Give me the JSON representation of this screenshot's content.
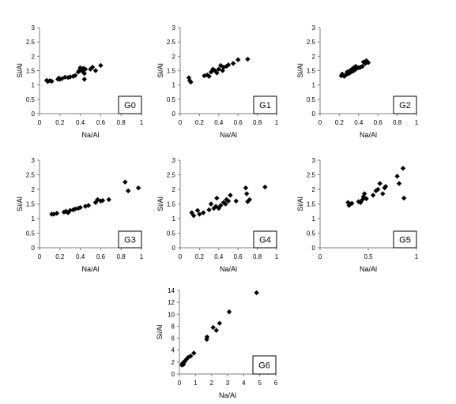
{
  "figure": {
    "colors": {
      "marker": "#000000",
      "axis": "#7f7f7f",
      "background": "#ffffff"
    }
  },
  "chart_data": [
    {
      "type": "scatter",
      "group_label": "G0",
      "xlabel": "Na/Al",
      "ylabel": "Si/Al",
      "xlim": [
        0,
        1
      ],
      "ylim": [
        0,
        3
      ],
      "xticks": [
        "0",
        "0.2",
        "0.4",
        "0.6",
        "0.8",
        "1"
      ],
      "yticks": [
        "0",
        "0.5",
        "1",
        "1.5",
        "2",
        "2.5",
        "3"
      ],
      "grid": false,
      "points": [
        [
          0.07,
          1.16
        ],
        [
          0.08,
          1.12
        ],
        [
          0.1,
          1.15
        ],
        [
          0.12,
          1.13
        ],
        [
          0.18,
          1.2
        ],
        [
          0.19,
          1.24
        ],
        [
          0.2,
          1.2
        ],
        [
          0.22,
          1.22
        ],
        [
          0.25,
          1.27
        ],
        [
          0.28,
          1.26
        ],
        [
          0.3,
          1.28
        ],
        [
          0.33,
          1.3
        ],
        [
          0.35,
          1.33
        ],
        [
          0.38,
          1.45
        ],
        [
          0.39,
          1.5
        ],
        [
          0.4,
          1.6
        ],
        [
          0.41,
          1.52
        ],
        [
          0.42,
          1.48
        ],
        [
          0.43,
          1.58
        ],
        [
          0.44,
          1.4
        ],
        [
          0.44,
          1.2
        ],
        [
          0.45,
          1.55
        ],
        [
          0.5,
          1.55
        ],
        [
          0.52,
          1.62
        ],
        [
          0.55,
          1.5
        ],
        [
          0.6,
          1.68
        ]
      ]
    },
    {
      "type": "scatter",
      "group_label": "G1",
      "xlabel": "Na/Al",
      "ylabel": "Si/Al",
      "xlim": [
        0,
        1
      ],
      "ylim": [
        0,
        3
      ],
      "xticks": [
        "0",
        "0.2",
        "0.4",
        "0.6",
        "0.8",
        "1"
      ],
      "yticks": [
        "0",
        "0.5",
        "1",
        "1.5",
        "2",
        "2.5",
        "3"
      ],
      "grid": false,
      "points": [
        [
          0.09,
          1.25
        ],
        [
          0.1,
          1.15
        ],
        [
          0.11,
          1.1
        ],
        [
          0.25,
          1.32
        ],
        [
          0.28,
          1.35
        ],
        [
          0.3,
          1.3
        ],
        [
          0.32,
          1.45
        ],
        [
          0.34,
          1.55
        ],
        [
          0.36,
          1.5
        ],
        [
          0.38,
          1.42
        ],
        [
          0.4,
          1.55
        ],
        [
          0.42,
          1.68
        ],
        [
          0.44,
          1.5
        ],
        [
          0.45,
          1.62
        ],
        [
          0.48,
          1.65
        ],
        [
          0.5,
          1.7
        ],
        [
          0.55,
          1.75
        ],
        [
          0.6,
          1.88
        ],
        [
          0.7,
          1.9
        ]
      ]
    },
    {
      "type": "scatter",
      "group_label": "G2",
      "xlabel": "Na/Al",
      "ylabel": "Si/Al",
      "xlim": [
        0,
        1
      ],
      "ylim": [
        0,
        3
      ],
      "xticks": [
        "0",
        "0.2",
        "0.4",
        "0.6",
        "0.8",
        "1"
      ],
      "yticks": [
        "0",
        "0.5",
        "1",
        "1.5",
        "2",
        "2.5",
        "3"
      ],
      "grid": false,
      "points": [
        [
          0.22,
          1.32
        ],
        [
          0.23,
          1.38
        ],
        [
          0.25,
          1.3
        ],
        [
          0.27,
          1.35
        ],
        [
          0.28,
          1.45
        ],
        [
          0.3,
          1.4
        ],
        [
          0.31,
          1.5
        ],
        [
          0.32,
          1.45
        ],
        [
          0.33,
          1.55
        ],
        [
          0.34,
          1.48
        ],
        [
          0.35,
          1.6
        ],
        [
          0.36,
          1.52
        ],
        [
          0.37,
          1.65
        ],
        [
          0.38,
          1.58
        ],
        [
          0.4,
          1.6
        ],
        [
          0.42,
          1.62
        ],
        [
          0.44,
          1.65
        ],
        [
          0.45,
          1.8
        ],
        [
          0.47,
          1.75
        ],
        [
          0.48,
          1.85
        ],
        [
          0.5,
          1.78
        ]
      ]
    },
    {
      "type": "scatter",
      "group_label": "G3",
      "xlabel": "Na/Al",
      "ylabel": "Si/Al",
      "xlim": [
        0,
        1
      ],
      "ylim": [
        0,
        3
      ],
      "xticks": [
        "0",
        "0.2",
        "0.4",
        "0.6",
        "0.8",
        "1"
      ],
      "yticks": [
        "0",
        "0.5",
        "1",
        "1.5",
        "2",
        "2.5",
        "3"
      ],
      "grid": false,
      "points": [
        [
          0.12,
          1.15
        ],
        [
          0.14,
          1.15
        ],
        [
          0.17,
          1.18
        ],
        [
          0.24,
          1.22
        ],
        [
          0.26,
          1.25
        ],
        [
          0.28,
          1.2
        ],
        [
          0.3,
          1.28
        ],
        [
          0.33,
          1.3
        ],
        [
          0.35,
          1.33
        ],
        [
          0.38,
          1.35
        ],
        [
          0.4,
          1.38
        ],
        [
          0.45,
          1.42
        ],
        [
          0.48,
          1.45
        ],
        [
          0.55,
          1.55
        ],
        [
          0.57,
          1.65
        ],
        [
          0.6,
          1.6
        ],
        [
          0.62,
          1.62
        ],
        [
          0.68,
          1.65
        ],
        [
          0.84,
          2.25
        ],
        [
          0.87,
          1.95
        ],
        [
          0.97,
          2.05
        ]
      ]
    },
    {
      "type": "scatter",
      "group_label": "G4",
      "xlabel": "Na/Al",
      "ylabel": "Si/Al",
      "xlim": [
        0,
        1
      ],
      "ylim": [
        0,
        3
      ],
      "xticks": [
        "0",
        "0.2",
        "0.4",
        "0.6",
        "0.8",
        "1"
      ],
      "yticks": [
        "0",
        "0.5",
        "1",
        "1.5",
        "2",
        "2.5",
        "3"
      ],
      "grid": false,
      "points": [
        [
          0.12,
          1.2
        ],
        [
          0.14,
          1.1
        ],
        [
          0.18,
          1.28
        ],
        [
          0.2,
          1.15
        ],
        [
          0.24,
          1.2
        ],
        [
          0.3,
          1.3
        ],
        [
          0.32,
          1.5
        ],
        [
          0.35,
          1.35
        ],
        [
          0.37,
          1.42
        ],
        [
          0.38,
          1.7
        ],
        [
          0.4,
          1.35
        ],
        [
          0.42,
          1.45
        ],
        [
          0.45,
          1.55
        ],
        [
          0.47,
          1.5
        ],
        [
          0.48,
          1.65
        ],
        [
          0.5,
          1.6
        ],
        [
          0.52,
          1.8
        ],
        [
          0.58,
          1.6
        ],
        [
          0.68,
          2.05
        ],
        [
          0.69,
          1.85
        ],
        [
          0.7,
          1.58
        ],
        [
          0.72,
          1.65
        ],
        [
          0.88,
          2.08
        ]
      ]
    },
    {
      "type": "scatter",
      "group_label": "G5",
      "xlabel": "Na/Al",
      "ylabel": "Si/Al",
      "xlim": [
        0,
        1
      ],
      "ylim": [
        0,
        3
      ],
      "xticks": [
        "0",
        "0.5",
        "1"
      ],
      "yticks": [
        "0",
        "0.5",
        "1",
        "1.5",
        "2",
        "2.5",
        "3"
      ],
      "grid": false,
      "points": [
        [
          0.29,
          1.55
        ],
        [
          0.3,
          1.45
        ],
        [
          0.31,
          1.5
        ],
        [
          0.33,
          1.52
        ],
        [
          0.4,
          1.58
        ],
        [
          0.42,
          1.55
        ],
        [
          0.44,
          1.65
        ],
        [
          0.45,
          1.75
        ],
        [
          0.46,
          1.85
        ],
        [
          0.48,
          1.68
        ],
        [
          0.55,
          1.8
        ],
        [
          0.58,
          1.95
        ],
        [
          0.6,
          2.0
        ],
        [
          0.62,
          2.2
        ],
        [
          0.65,
          1.85
        ],
        [
          0.67,
          2.05
        ],
        [
          0.68,
          2.1
        ],
        [
          0.8,
          2.45
        ],
        [
          0.82,
          2.2
        ],
        [
          0.86,
          2.72
        ],
        [
          0.87,
          1.7
        ]
      ]
    },
    {
      "type": "scatter",
      "group_label": "G6",
      "xlabel": "Na/Al",
      "ylabel": "Si/Al",
      "xlim": [
        0,
        6
      ],
      "ylim": [
        0,
        14
      ],
      "xticks": [
        "0",
        "1",
        "2",
        "3",
        "4",
        "5",
        "6"
      ],
      "yticks": [
        "0",
        "2",
        "4",
        "6",
        "8",
        "10",
        "12",
        "14"
      ],
      "grid": false,
      "points": [
        [
          0.15,
          1.5
        ],
        [
          0.2,
          1.8
        ],
        [
          0.25,
          1.6
        ],
        [
          0.3,
          2.0
        ],
        [
          0.35,
          2.2
        ],
        [
          0.45,
          2.5
        ],
        [
          0.55,
          2.8
        ],
        [
          0.7,
          3.0
        ],
        [
          0.9,
          3.5
        ],
        [
          1.7,
          5.8
        ],
        [
          1.72,
          6.2
        ],
        [
          2.1,
          7.8
        ],
        [
          2.3,
          7.3
        ],
        [
          2.5,
          8.5
        ],
        [
          3.1,
          10.4
        ],
        [
          4.8,
          13.6
        ]
      ]
    }
  ]
}
